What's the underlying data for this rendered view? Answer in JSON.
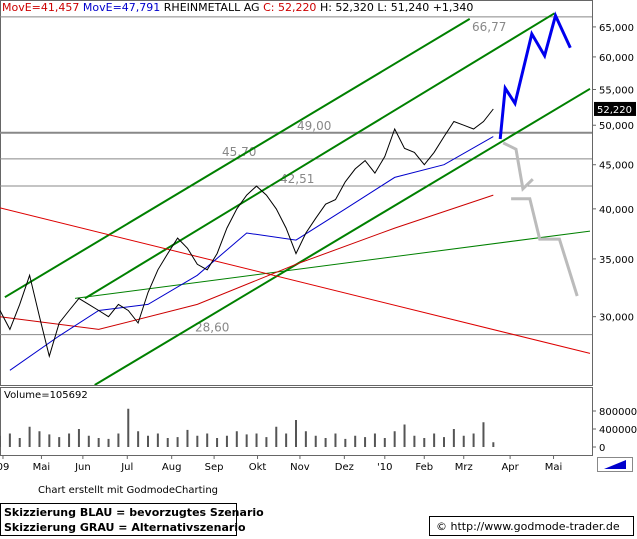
{
  "header": {
    "ma1": "MovE=41,457",
    "ma2": "MovE=47,791",
    "name": "RHEINMETALL AG",
    "close": "C: 52,220",
    "hl": "H: 52,320  L: 51,240  +1,340"
  },
  "chart_data": [
    {
      "type": "line",
      "log": true,
      "xlim": [
        0,
        60
      ],
      "ylim": [
        25,
        68
      ],
      "yticks": [
        {
          "value": 30,
          "label": "30,000"
        },
        {
          "value": 35,
          "label": "35,000"
        },
        {
          "value": 40,
          "label": "40,000"
        },
        {
          "value": 45,
          "label": "45,000"
        },
        {
          "value": 50,
          "label": "50,000"
        },
        {
          "value": 55,
          "label": "55,000"
        },
        {
          "value": 60,
          "label": "60,000"
        },
        {
          "value": 65,
          "label": "65,000"
        }
      ],
      "xticks": [
        {
          "value": 0.3,
          "label": "09"
        },
        {
          "value": 4.2,
          "label": "Mai"
        },
        {
          "value": 8.4,
          "label": "Jun"
        },
        {
          "value": 12.9,
          "label": "Jul"
        },
        {
          "value": 17.4,
          "label": "Aug"
        },
        {
          "value": 21.7,
          "label": "Sep"
        },
        {
          "value": 26.1,
          "label": "Okt"
        },
        {
          "value": 30.4,
          "label": "Nov"
        },
        {
          "value": 34.9,
          "label": "Dez"
        },
        {
          "value": 39,
          "label": "'10"
        },
        {
          "value": 43,
          "label": "Feb"
        },
        {
          "value": 47,
          "label": "Mrz"
        },
        {
          "value": 51.7,
          "label": "Apr"
        },
        {
          "value": 56.1,
          "label": "Mai"
        }
      ],
      "last": {
        "value": 52.22,
        "label": "52,220"
      },
      "levels": [
        {
          "value": 66.77,
          "label": "66,77"
        },
        {
          "value": 49.0,
          "label": "49,00"
        },
        {
          "value": 45.7,
          "label": "45,70"
        },
        {
          "value": 42.51,
          "label": "42,51"
        },
        {
          "value": 28.6,
          "label": "28,60"
        }
      ],
      "series": [
        {
          "color": "#008000",
          "x": [
            0.5,
            47.6
          ],
          "values": [
            31.6,
            66.4
          ]
        },
        {
          "color": "#008000",
          "x": [
            8.6,
            56.2
          ],
          "values": [
            31.5,
            67.4
          ]
        },
        {
          "color": "#008000",
          "x": [
            9.6,
            59.8
          ],
          "values": [
            25.0,
            55.1
          ]
        },
        {
          "color": "#008000",
          "x": [
            7.6,
            59.8
          ],
          "values": [
            31.5,
            37.7
          ]
        },
        {
          "color": "#dd0000",
          "x": [
            0,
            59.8
          ],
          "values": [
            40.1,
            27.2
          ]
        },
        {
          "color": "#cc0000",
          "x": [
            0,
            10,
            20,
            30,
            40,
            50
          ],
          "values": [
            30,
            29,
            31,
            34.5,
            38,
            41.5
          ]
        },
        {
          "color": "#0000cc",
          "x": [
            1,
            6,
            10,
            15,
            20,
            25,
            30,
            35,
            40,
            45,
            50
          ],
          "values": [
            26,
            28.5,
            30.5,
            31,
            33.5,
            37.5,
            36.8,
            40,
            43.5,
            45,
            48.5
          ]
        },
        {
          "color": "#000000",
          "x": [
            0,
            1,
            2,
            3,
            4,
            5,
            6,
            7,
            8,
            9,
            10,
            11,
            12,
            13,
            14,
            15,
            16,
            17,
            18,
            19,
            20,
            21,
            22,
            23,
            24,
            25,
            26,
            27,
            28,
            29,
            30,
            31,
            32,
            33,
            34,
            35,
            36,
            37,
            38,
            39,
            40,
            41,
            42,
            43,
            44,
            45,
            46,
            47,
            48,
            49,
            50
          ],
          "values": [
            30.5,
            29,
            31,
            33.5,
            30,
            27,
            29.5,
            30.5,
            31.5,
            31,
            30.5,
            30,
            31,
            30.5,
            29.5,
            32,
            34,
            35.5,
            37,
            36,
            34.5,
            34,
            35.5,
            38,
            40,
            41.5,
            42.5,
            41.5,
            40,
            38,
            35.5,
            37.5,
            39,
            40.5,
            41,
            43,
            44.5,
            45.5,
            44,
            46,
            49.5,
            47,
            46.5,
            45,
            46.5,
            48.5,
            50.5,
            50,
            49.5,
            50.5,
            52.22
          ]
        },
        {
          "color": "#0000ee",
          "x": [
            50.7,
            51.2,
            52.2,
            53.9,
            55.2,
            56.3,
            57.8
          ],
          "values": [
            48.2,
            55.2,
            53,
            63.8,
            60.2,
            67,
            61.5
          ]
        },
        {
          "color": "#bbbbbb",
          "x": [
            51,
            52.3,
            53,
            54,
            null,
            51.8,
            53.7,
            54.7,
            56.7,
            58.5
          ],
          "values": [
            47.7,
            46.9,
            42.2,
            43.3,
            null,
            41.1,
            41.1,
            36.9,
            36.9,
            31.7
          ]
        }
      ]
    },
    {
      "type": "bar",
      "label": "Volume=105692",
      "ylim": [
        0,
        1000000
      ],
      "yticks": [
        0,
        400000,
        800000
      ],
      "x": [
        0,
        1,
        2,
        3,
        4,
        5,
        6,
        7,
        8,
        9,
        10,
        11,
        12,
        13,
        14,
        15,
        16,
        17,
        18,
        19,
        20,
        21,
        22,
        23,
        24,
        25,
        26,
        27,
        28,
        29,
        30,
        31,
        32,
        33,
        34,
        35,
        36,
        37,
        38,
        39,
        40,
        41,
        42,
        43,
        44,
        45,
        46,
        47,
        48,
        49,
        50
      ],
      "values": [
        250000,
        300000,
        200000,
        450000,
        350000,
        280000,
        220000,
        300000,
        400000,
        250000,
        200000,
        180000,
        300000,
        850000,
        350000,
        250000,
        300000,
        200000,
        220000,
        380000,
        250000,
        300000,
        200000,
        250000,
        350000,
        280000,
        300000,
        220000,
        450000,
        300000,
        600000,
        350000,
        250000,
        200000,
        300000,
        180000,
        250000,
        220000,
        300000,
        200000,
        350000,
        500000,
        250000,
        200000,
        300000,
        220000,
        400000,
        250000,
        300000,
        550000,
        105692
      ]
    }
  ],
  "footer": {
    "credit": "Chart erstellt mit GodmodeCharting",
    "blue": "Skizzierung BLAU = bevorzugtes Szenario",
    "grey": "Skizzierung GRAU = Alternativszenario",
    "url": "© http://www.godmode-trader.de"
  }
}
